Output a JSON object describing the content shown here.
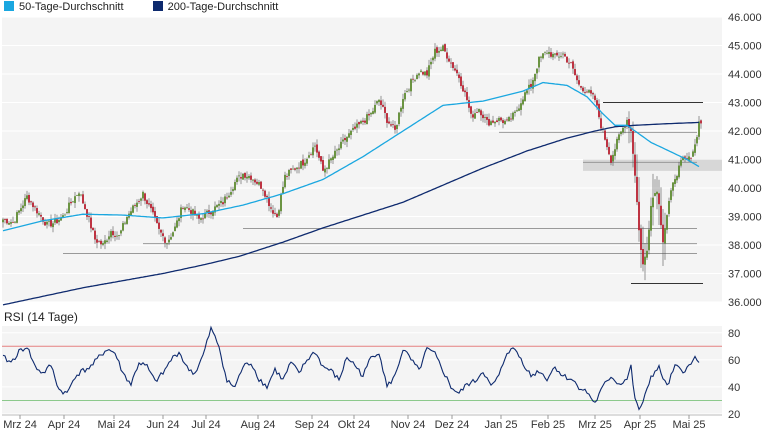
{
  "legend": {
    "ma50_label": "50-Tage-Durchschnitt",
    "ma200_label": "200-Tage-Durchschnitt"
  },
  "colors": {
    "ma50": "#1aa7e0",
    "ma200": "#0e2a6e",
    "rsi": "#0e2a6e",
    "up": "#5c8a2e",
    "down": "#b81e2e",
    "band_upper": "#e58080",
    "band_lower": "#8cc98c"
  },
  "rsi_title": "RSI (14 Tage)",
  "chart_data": [
    {
      "type": "candlestick",
      "title": "",
      "y_ticks": [
        "46.000",
        "45.000",
        "44.000",
        "43.000",
        "42.000",
        "41.000",
        "40.000",
        "39.000",
        "38.000",
        "37.000",
        "36.000"
      ],
      "ylim": [
        36000,
        46000
      ],
      "x_ticks": [
        "Mrz 24",
        "Apr 24",
        "Mai 24",
        "Jun 24",
        "Jul 24",
        "Aug 24",
        "Sep 24",
        "Okt 24",
        "Nov 24",
        "Dez 24",
        "Jan 25",
        "Feb 25",
        "Mrz 25",
        "Apr 25",
        "Mai 25"
      ],
      "close_anchors": [
        [
          0,
          38900
        ],
        [
          5,
          38800
        ],
        [
          12,
          39700
        ],
        [
          18,
          39100
        ],
        [
          22,
          38700
        ],
        [
          26,
          38800
        ],
        [
          30,
          39000
        ],
        [
          35,
          39600
        ],
        [
          38,
          39900
        ],
        [
          42,
          39100
        ],
        [
          46,
          38200
        ],
        [
          50,
          38000
        ],
        [
          54,
          38500
        ],
        [
          58,
          38300
        ],
        [
          62,
          39000
        ],
        [
          66,
          39400
        ],
        [
          70,
          39800
        ],
        [
          74,
          39200
        ],
        [
          78,
          38500
        ],
        [
          82,
          38100
        ],
        [
          86,
          38600
        ],
        [
          90,
          39400
        ],
        [
          94,
          39200
        ],
        [
          98,
          38900
        ],
        [
          104,
          39200
        ],
        [
          110,
          39500
        ],
        [
          116,
          40200
        ],
        [
          120,
          40500
        ],
        [
          124,
          40400
        ],
        [
          130,
          40000
        ],
        [
          134,
          39300
        ],
        [
          137,
          39000
        ],
        [
          141,
          40400
        ],
        [
          146,
          40700
        ],
        [
          150,
          40900
        ],
        [
          156,
          41500
        ],
        [
          160,
          40600
        ],
        [
          166,
          41200
        ],
        [
          172,
          41800
        ],
        [
          178,
          42200
        ],
        [
          184,
          42600
        ],
        [
          188,
          43100
        ],
        [
          192,
          42400
        ],
        [
          196,
          42000
        ],
        [
          200,
          43200
        ],
        [
          204,
          43700
        ],
        [
          208,
          44100
        ],
        [
          212,
          44000
        ],
        [
          216,
          44800
        ],
        [
          220,
          44900
        ],
        [
          224,
          44400
        ],
        [
          228,
          43900
        ],
        [
          232,
          43100
        ],
        [
          234,
          42500
        ],
        [
          238,
          42800
        ],
        [
          242,
          42300
        ],
        [
          248,
          42400
        ],
        [
          252,
          42300
        ],
        [
          256,
          42600
        ],
        [
          260,
          43200
        ],
        [
          264,
          43600
        ],
        [
          268,
          44500
        ],
        [
          272,
          44800
        ],
        [
          276,
          44600
        ],
        [
          280,
          44700
        ],
        [
          284,
          44300
        ],
        [
          288,
          43600
        ],
        [
          292,
          43400
        ],
        [
          296,
          43100
        ],
        [
          299,
          42200
        ],
        [
          302,
          41500
        ],
        [
          304,
          41000
        ],
        [
          308,
          41800
        ],
        [
          312,
          42400
        ],
        [
          314,
          42000
        ],
        [
          316,
          40500
        ],
        [
          318,
          38500
        ],
        [
          320,
          37300
        ],
        [
          322,
          37800
        ],
        [
          324,
          39500
        ],
        [
          327,
          40000
        ],
        [
          330,
          38200
        ],
        [
          333,
          39500
        ],
        [
          336,
          40400
        ],
        [
          340,
          41000
        ],
        [
          343,
          41000
        ],
        [
          346,
          41500
        ],
        [
          348,
          42300
        ]
      ],
      "ma50_anchors": [
        [
          0,
          38500
        ],
        [
          20,
          38850
        ],
        [
          40,
          39080
        ],
        [
          60,
          39050
        ],
        [
          80,
          38950
        ],
        [
          100,
          39100
        ],
        [
          120,
          39400
        ],
        [
          140,
          39800
        ],
        [
          160,
          40300
        ],
        [
          180,
          41100
        ],
        [
          200,
          42000
        ],
        [
          220,
          42900
        ],
        [
          240,
          43050
        ],
        [
          260,
          43400
        ],
        [
          270,
          43700
        ],
        [
          282,
          43600
        ],
        [
          292,
          43200
        ],
        [
          300,
          42600
        ],
        [
          306,
          42200
        ],
        [
          312,
          42200
        ],
        [
          318,
          41900
        ],
        [
          324,
          41600
        ],
        [
          330,
          41400
        ],
        [
          336,
          41200
        ],
        [
          342,
          41000
        ],
        [
          348,
          40750
        ]
      ],
      "ma200_anchors": [
        [
          0,
          35900
        ],
        [
          20,
          36200
        ],
        [
          40,
          36500
        ],
        [
          60,
          36750
        ],
        [
          80,
          37000
        ],
        [
          100,
          37300
        ],
        [
          118,
          37600
        ],
        [
          140,
          38100
        ],
        [
          160,
          38600
        ],
        [
          180,
          39050
        ],
        [
          200,
          39500
        ],
        [
          220,
          40100
        ],
        [
          240,
          40700
        ],
        [
          262,
          41300
        ],
        [
          282,
          41750
        ],
        [
          296,
          42000
        ],
        [
          306,
          42150
        ],
        [
          316,
          42200
        ],
        [
          330,
          42250
        ],
        [
          348,
          42300
        ]
      ],
      "support_lines": [
        [
          300,
          43000
        ],
        [
          248,
          41950
        ],
        [
          290,
          40900
        ],
        [
          120,
          38580
        ],
        [
          70,
          38050
        ],
        [
          30,
          37700
        ],
        [
          314,
          36650
        ]
      ],
      "resistance_zone": [
        290,
        40600,
        41000
      ]
    },
    {
      "type": "line",
      "title": "RSI (14 Tage)",
      "y_ticks": [
        "80",
        "60",
        "40",
        "20"
      ],
      "ylim": [
        20,
        85
      ],
      "bands": [
        30,
        70
      ],
      "values_anchors": [
        [
          0,
          62
        ],
        [
          4,
          58
        ],
        [
          8,
          66
        ],
        [
          12,
          70
        ],
        [
          16,
          55
        ],
        [
          20,
          50
        ],
        [
          24,
          56
        ],
        [
          28,
          38
        ],
        [
          32,
          35
        ],
        [
          36,
          48
        ],
        [
          40,
          52
        ],
        [
          44,
          55
        ],
        [
          48,
          62
        ],
        [
          52,
          68
        ],
        [
          56,
          65
        ],
        [
          60,
          50
        ],
        [
          64,
          42
        ],
        [
          68,
          58
        ],
        [
          72,
          55
        ],
        [
          76,
          44
        ],
        [
          80,
          50
        ],
        [
          84,
          60
        ],
        [
          88,
          66
        ],
        [
          92,
          54
        ],
        [
          96,
          50
        ],
        [
          100,
          63
        ],
        [
          104,
          83
        ],
        [
          108,
          70
        ],
        [
          112,
          44
        ],
        [
          116,
          40
        ],
        [
          120,
          55
        ],
        [
          124,
          58
        ],
        [
          128,
          46
        ],
        [
          132,
          40
        ],
        [
          136,
          53
        ],
        [
          140,
          45
        ],
        [
          144,
          58
        ],
        [
          148,
          50
        ],
        [
          152,
          60
        ],
        [
          156,
          66
        ],
        [
          160,
          55
        ],
        [
          164,
          52
        ],
        [
          168,
          45
        ],
        [
          172,
          62
        ],
        [
          176,
          56
        ],
        [
          180,
          48
        ],
        [
          184,
          62
        ],
        [
          188,
          66
        ],
        [
          192,
          40
        ],
        [
          196,
          48
        ],
        [
          200,
          68
        ],
        [
          204,
          60
        ],
        [
          208,
          52
        ],
        [
          212,
          68
        ],
        [
          216,
          64
        ],
        [
          220,
          52
        ],
        [
          224,
          40
        ],
        [
          228,
          35
        ],
        [
          232,
          42
        ],
        [
          236,
          44
        ],
        [
          240,
          52
        ],
        [
          244,
          40
        ],
        [
          248,
          48
        ],
        [
          252,
          66
        ],
        [
          256,
          68
        ],
        [
          260,
          58
        ],
        [
          264,
          48
        ],
        [
          268,
          52
        ],
        [
          272,
          46
        ],
        [
          276,
          55
        ],
        [
          280,
          48
        ],
        [
          284,
          46
        ],
        [
          288,
          40
        ],
        [
          292,
          36
        ],
        [
          296,
          28
        ],
        [
          300,
          40
        ],
        [
          304,
          48
        ],
        [
          308,
          42
        ],
        [
          312,
          46
        ],
        [
          314,
          55
        ],
        [
          316,
          30
        ],
        [
          318,
          24
        ],
        [
          320,
          28
        ],
        [
          324,
          48
        ],
        [
          328,
          54
        ],
        [
          332,
          40
        ],
        [
          336,
          55
        ],
        [
          340,
          52
        ],
        [
          344,
          56
        ],
        [
          346,
          62
        ],
        [
          348,
          60
        ]
      ]
    }
  ]
}
